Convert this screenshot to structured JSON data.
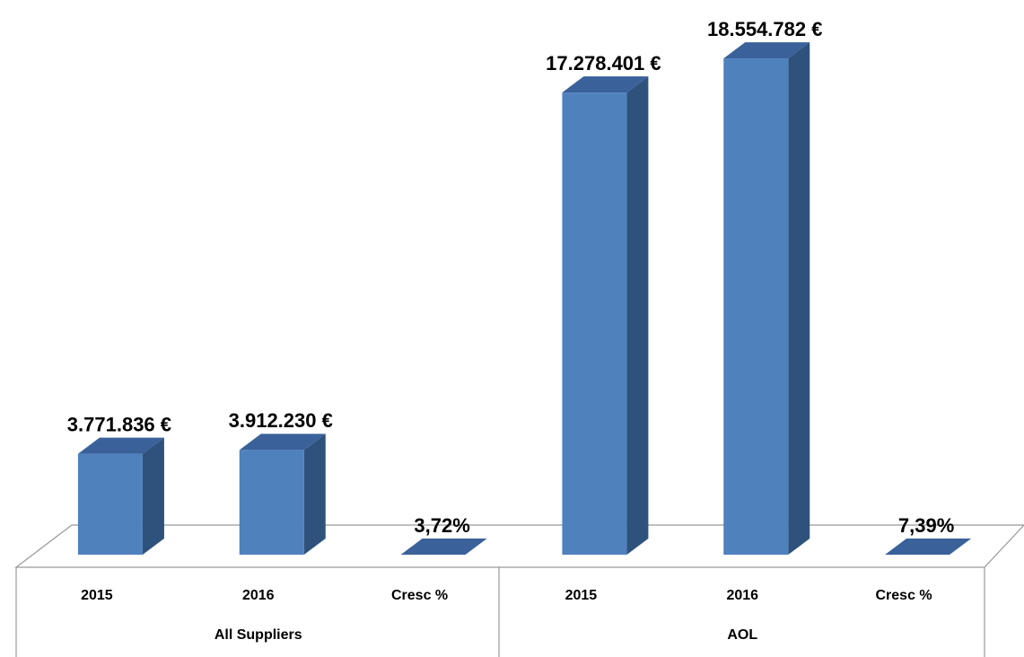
{
  "chart_data": {
    "type": "bar",
    "categories": [
      "2015",
      "2016",
      "Cresc %",
      "2015",
      "2016",
      "Cresc %"
    ],
    "groups": [
      "All Suppliers",
      "AOL"
    ],
    "values": [
      3771836,
      3912230,
      3.72,
      17278401,
      18554782,
      7.39
    ],
    "value_labels": [
      "3.771.836 €",
      "3.912.230 €",
      "3,72%",
      "17.278.401 €",
      "18.554.782 €",
      "7,39%"
    ],
    "color": "#4f81bd",
    "ylim": [
      0,
      20000000
    ]
  }
}
